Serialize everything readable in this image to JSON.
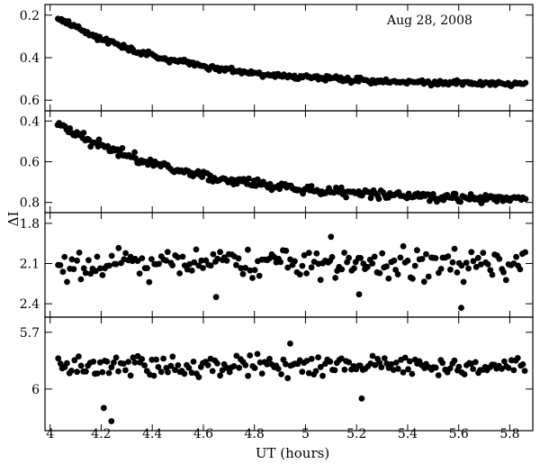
{
  "chart_data": {
    "type": "scatter",
    "title": "",
    "annotation": "Aug 28, 2008",
    "xlabel": "UT (hours)",
    "ylabel": "ΔI",
    "xlim": [
      3.98,
      5.89
    ],
    "x_ticks": [
      4,
      4.2,
      4.4,
      4.6,
      4.8,
      5,
      5.2,
      5.4,
      5.6,
      5.8
    ],
    "x_tick_labels": [
      "4",
      "4.2",
      "4.4",
      "4.6",
      "4.8",
      "5",
      "5.2",
      "5.4",
      "5.6",
      "5.8"
    ],
    "panels": [
      {
        "name": "panel-1",
        "ylim": [
          0.15,
          0.65
        ],
        "y_inverted": true,
        "y_ticks": [
          0.2,
          0.4,
          0.6
        ],
        "y_tick_labels": [
          "0.2",
          "0.4",
          "0.6"
        ],
        "trend": "decaying",
        "start": 0.21,
        "end": 0.53,
        "tau": 0.45,
        "noise": 0.012,
        "n": 270,
        "x_range": [
          4.03,
          5.86
        ]
      },
      {
        "name": "panel-2",
        "ylim": [
          0.35,
          0.85
        ],
        "y_inverted": true,
        "y_ticks": [
          0.4,
          0.6,
          0.8
        ],
        "y_tick_labels": [
          "0.4",
          "0.6",
          "0.8"
        ],
        "trend": "decaying",
        "start": 0.41,
        "end": 0.79,
        "tau": 0.5,
        "noise": 0.022,
        "n": 270,
        "x_range": [
          4.03,
          5.86
        ]
      },
      {
        "name": "panel-3",
        "ylim": [
          1.72,
          2.5
        ],
        "y_inverted": true,
        "y_ticks": [
          1.8,
          2.1,
          2.4
        ],
        "y_tick_labels": [
          "1.8",
          "2.1",
          "2.4"
        ],
        "trend": "flat",
        "mean": 2.1,
        "noise": 0.11,
        "n": 200,
        "x_range": [
          4.03,
          5.86
        ],
        "outliers": [
          [
            4.65,
            2.35
          ],
          [
            5.61,
            2.43
          ],
          [
            5.21,
            2.33
          ],
          [
            5.1,
            1.9
          ]
        ]
      },
      {
        "name": "panel-4",
        "ylim": [
          5.62,
          6.22
        ],
        "y_inverted": true,
        "y_ticks": [
          5.7,
          6.0
        ],
        "y_tick_labels": [
          "5.7",
          "6"
        ],
        "trend": "flat",
        "mean": 5.88,
        "noise": 0.055,
        "n": 200,
        "x_range": [
          4.03,
          5.86
        ],
        "outliers": [
          [
            4.24,
            6.17
          ],
          [
            4.21,
            6.1
          ],
          [
            5.22,
            6.05
          ],
          [
            4.94,
            5.76
          ]
        ]
      }
    ]
  }
}
